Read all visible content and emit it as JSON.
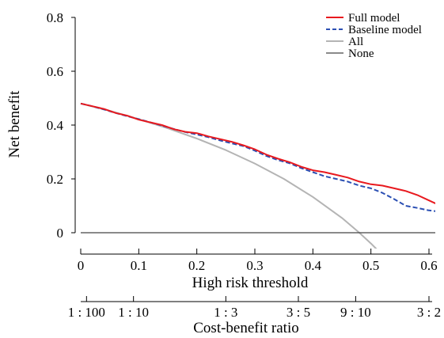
{
  "chart_data": {
    "type": "line",
    "ylabel": "Net benefit",
    "xlabel": "High risk threshold",
    "xlabel2": "Cost-benefit ratio",
    "xlim": [
      0,
      0.63
    ],
    "ylim": [
      0,
      0.8
    ],
    "y_ticks": [
      {
        "value": 0,
        "label": "0"
      },
      {
        "value": 0.2,
        "label": "0.2"
      },
      {
        "value": 0.4,
        "label": "0.4"
      },
      {
        "value": 0.6,
        "label": "0.6"
      },
      {
        "value": 0.8,
        "label": "0.8"
      }
    ],
    "x_ticks": [
      {
        "value": 0,
        "label": "0"
      },
      {
        "value": 0.1,
        "label": "0.1"
      },
      {
        "value": 0.2,
        "label": "0.2"
      },
      {
        "value": 0.3,
        "label": "0.3"
      },
      {
        "value": 0.4,
        "label": "0.4"
      },
      {
        "value": 0.5,
        "label": "0.5"
      },
      {
        "value": 0.6,
        "label": "0.6"
      }
    ],
    "x2_ticks": [
      {
        "value": 0.01,
        "label": "1 : 100"
      },
      {
        "value": 0.0909,
        "label": "1 : 10"
      },
      {
        "value": 0.25,
        "label": "1 : 3"
      },
      {
        "value": 0.375,
        "label": "3 : 5"
      },
      {
        "value": 0.4737,
        "label": "9 : 10"
      },
      {
        "value": 0.6,
        "label": "3 : 2"
      }
    ],
    "grid": false,
    "legend_position": "top-right",
    "series": [
      {
        "name": "Full model",
        "color": "#e8191e",
        "style": "solid",
        "x": [
          0,
          0.02,
          0.04,
          0.06,
          0.08,
          0.1,
          0.12,
          0.14,
          0.16,
          0.18,
          0.2,
          0.22,
          0.24,
          0.26,
          0.28,
          0.3,
          0.32,
          0.34,
          0.36,
          0.38,
          0.4,
          0.42,
          0.44,
          0.46,
          0.48,
          0.5,
          0.52,
          0.54,
          0.56,
          0.58,
          0.6,
          0.62,
          0.63
        ],
        "y": [
          0.48,
          0.47,
          0.46,
          0.445,
          0.435,
          0.42,
          0.41,
          0.4,
          0.385,
          0.375,
          0.37,
          0.358,
          0.348,
          0.338,
          0.325,
          0.31,
          0.29,
          0.275,
          0.262,
          0.245,
          0.232,
          0.225,
          0.215,
          0.205,
          0.19,
          0.18,
          0.175,
          0.165,
          0.155,
          0.14,
          0.12,
          0.1,
          0.08
        ]
      },
      {
        "name": "Baseline model",
        "color": "#2b4fb3",
        "style": "dashed",
        "x": [
          0,
          0.02,
          0.04,
          0.06,
          0.08,
          0.1,
          0.12,
          0.14,
          0.16,
          0.18,
          0.2,
          0.22,
          0.24,
          0.26,
          0.28,
          0.3,
          0.32,
          0.34,
          0.36,
          0.38,
          0.4,
          0.42,
          0.44,
          0.46,
          0.48,
          0.5,
          0.52,
          0.54,
          0.56,
          0.58,
          0.6,
          0.62,
          0.63
        ],
        "y": [
          0.48,
          0.47,
          0.458,
          0.445,
          0.433,
          0.422,
          0.41,
          0.398,
          0.386,
          0.374,
          0.365,
          0.355,
          0.343,
          0.332,
          0.322,
          0.305,
          0.285,
          0.27,
          0.258,
          0.24,
          0.225,
          0.21,
          0.2,
          0.19,
          0.175,
          0.165,
          0.148,
          0.125,
          0.1,
          0.092,
          0.083,
          0.078,
          0.072
        ]
      },
      {
        "name": "All",
        "color": "#b4b4b4",
        "style": "solid",
        "x": [
          0,
          0.05,
          0.1,
          0.15,
          0.2,
          0.25,
          0.3,
          0.35,
          0.4,
          0.45,
          0.48,
          0.5,
          0.52
        ],
        "y": [
          0.48,
          0.453,
          0.422,
          0.388,
          0.35,
          0.307,
          0.257,
          0.2,
          0.133,
          0.055,
          0.0,
          -0.04,
          -0.083
        ]
      },
      {
        "name": "None",
        "color": "#444444",
        "style": "solid",
        "x": [
          0,
          0.63
        ],
        "y": [
          0,
          0
        ]
      }
    ]
  }
}
